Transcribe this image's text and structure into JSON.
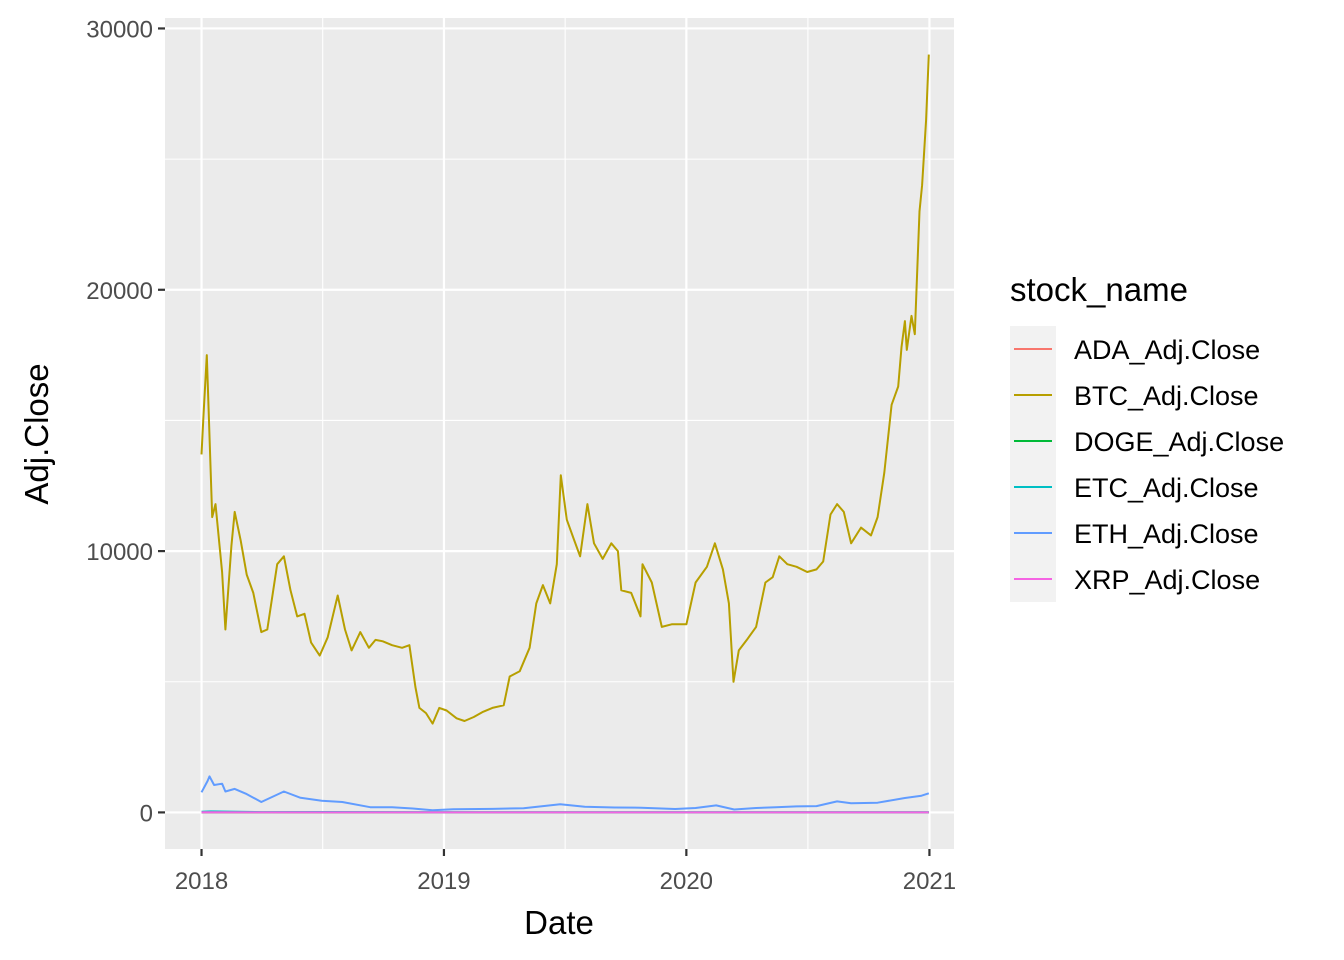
{
  "chart_data": {
    "type": "line",
    "xlabel": "Date",
    "ylabel": "Adj.Close",
    "xlim": [
      "2017-11-07",
      "2021-02-07"
    ],
    "ylim": [
      -1400,
      30400
    ],
    "x_ticks": [
      "2018",
      "2019",
      "2020",
      "2021"
    ],
    "x_tick_dates": [
      "2018-01-01",
      "2019-01-01",
      "2020-01-01",
      "2021-01-01"
    ],
    "y_ticks": [
      "0",
      "10000",
      "20000",
      "30000"
    ],
    "y_tick_values": [
      0,
      10000,
      20000,
      30000
    ],
    "grid": true,
    "legend": {
      "title": "stock_name",
      "position": "right"
    },
    "series": [
      {
        "name": "ADA_Adj.Close",
        "color": "#F8766D",
        "x": [
          "2018-01-01",
          "2018-07-01",
          "2019-01-01",
          "2019-07-01",
          "2020-01-01",
          "2020-07-01",
          "2020-12-31"
        ],
        "values": [
          0.7,
          0.15,
          0.04,
          0.08,
          0.03,
          0.09,
          0.18
        ]
      },
      {
        "name": "BTC_Adj.Close",
        "color": "#B79F00",
        "x": [
          "2018-01-01",
          "2018-01-04",
          "2018-01-09",
          "2018-01-17",
          "2018-01-22",
          "2018-02-01",
          "2018-02-06",
          "2018-02-15",
          "2018-02-20",
          "2018-03-01",
          "2018-03-10",
          "2018-03-20",
          "2018-04-01",
          "2018-04-10",
          "2018-04-25",
          "2018-05-05",
          "2018-05-15",
          "2018-05-25",
          "2018-06-05",
          "2018-06-15",
          "2018-06-28",
          "2018-07-10",
          "2018-07-25",
          "2018-08-05",
          "2018-08-15",
          "2018-08-28",
          "2018-09-10",
          "2018-09-20",
          "2018-10-01",
          "2018-10-15",
          "2018-10-30",
          "2018-11-10",
          "2018-11-19",
          "2018-11-25",
          "2018-12-05",
          "2018-12-15",
          "2018-12-25",
          "2019-01-05",
          "2019-01-20",
          "2019-02-01",
          "2019-02-15",
          "2019-03-01",
          "2019-03-15",
          "2019-04-01",
          "2019-04-10",
          "2019-04-25",
          "2019-05-10",
          "2019-05-20",
          "2019-05-30",
          "2019-06-10",
          "2019-06-20",
          "2019-06-26",
          "2019-07-05",
          "2019-07-15",
          "2019-07-25",
          "2019-08-05",
          "2019-08-15",
          "2019-08-28",
          "2019-09-10",
          "2019-09-20",
          "2019-09-25",
          "2019-10-10",
          "2019-10-24",
          "2019-10-27",
          "2019-11-10",
          "2019-11-25",
          "2019-12-10",
          "2019-12-20",
          "2020-01-01",
          "2020-01-15",
          "2020-02-01",
          "2020-02-13",
          "2020-02-25",
          "2020-03-05",
          "2020-03-12",
          "2020-03-20",
          "2020-04-01",
          "2020-04-15",
          "2020-04-29",
          "2020-05-10",
          "2020-05-20",
          "2020-06-01",
          "2020-06-15",
          "2020-07-01",
          "2020-07-15",
          "2020-07-25",
          "2020-08-05",
          "2020-08-15",
          "2020-08-25",
          "2020-09-05",
          "2020-09-20",
          "2020-10-05",
          "2020-10-15",
          "2020-10-25",
          "2020-11-05",
          "2020-11-15",
          "2020-11-20",
          "2020-11-25",
          "2020-11-28",
          "2020-12-05",
          "2020-12-10",
          "2020-12-17",
          "2020-12-21",
          "2020-12-27",
          "2020-12-31"
        ],
        "values": [
          13700,
          15200,
          17500,
          11300,
          11800,
          9200,
          7000,
          10200,
          11500,
          10400,
          9100,
          8400,
          6900,
          7000,
          9500,
          9800,
          8500,
          7500,
          7600,
          6500,
          6000,
          6700,
          8300,
          7000,
          6200,
          6900,
          6300,
          6600,
          6550,
          6400,
          6300,
          6400,
          4800,
          4000,
          3800,
          3400,
          4000,
          3900,
          3600,
          3500,
          3650,
          3850,
          4000,
          4100,
          5200,
          5400,
          6300,
          8000,
          8700,
          8000,
          9500,
          12900,
          11200,
          10500,
          9800,
          11800,
          10300,
          9700,
          10300,
          10000,
          8500,
          8400,
          7500,
          9500,
          8800,
          7100,
          7200,
          7200,
          7200,
          8800,
          9400,
          10300,
          9300,
          8000,
          5000,
          6200,
          6600,
          7100,
          8800,
          9000,
          9800,
          9500,
          9400,
          9200,
          9300,
          9600,
          11400,
          11800,
          11500,
          10300,
          10900,
          10600,
          11300,
          13000,
          15600,
          16300,
          17800,
          18800,
          17700,
          19000,
          18300,
          23000,
          24000,
          26500,
          29000
        ]
      },
      {
        "name": "DOGE_Adj.Close",
        "color": "#00BA38",
        "x": [
          "2018-01-01",
          "2018-07-01",
          "2019-01-01",
          "2019-07-01",
          "2020-01-01",
          "2020-07-01",
          "2020-12-31"
        ],
        "values": [
          0.009,
          0.003,
          0.002,
          0.003,
          0.002,
          0.003,
          0.005
        ]
      },
      {
        "name": "ETC_Adj.Close",
        "color": "#00BFC4",
        "x": [
          "2018-01-01",
          "2018-01-15",
          "2018-04-01",
          "2018-07-01",
          "2019-01-01",
          "2019-07-01",
          "2020-01-01",
          "2020-07-01",
          "2020-12-31"
        ],
        "values": [
          27,
          38,
          13,
          17,
          5,
          7,
          4.5,
          7,
          5.7
        ]
      },
      {
        "name": "ETH_Adj.Close",
        "color": "#619CFF",
        "x": [
          "2018-01-01",
          "2018-01-10",
          "2018-01-13",
          "2018-01-20",
          "2018-02-01",
          "2018-02-06",
          "2018-02-20",
          "2018-03-10",
          "2018-04-01",
          "2018-05-05",
          "2018-05-30",
          "2018-07-01",
          "2018-08-01",
          "2018-09-12",
          "2018-10-15",
          "2018-11-15",
          "2018-12-15",
          "2019-01-15",
          "2019-03-15",
          "2019-05-01",
          "2019-06-25",
          "2019-08-01",
          "2019-09-15",
          "2019-10-25",
          "2019-12-15",
          "2020-01-15",
          "2020-02-15",
          "2020-03-13",
          "2020-04-15",
          "2020-05-15",
          "2020-06-15",
          "2020-07-15",
          "2020-08-15",
          "2020-09-05",
          "2020-10-15",
          "2020-11-25",
          "2020-12-20",
          "2020-12-31"
        ],
        "values": [
          770,
          1200,
          1380,
          1050,
          1100,
          800,
          900,
          700,
          400,
          800,
          560,
          450,
          400,
          200,
          200,
          150,
          85,
          120,
          135,
          160,
          310,
          220,
          190,
          180,
          130,
          170,
          270,
          110,
          170,
          200,
          230,
          240,
          420,
          350,
          370,
          550,
          640,
          730
        ]
      },
      {
        "name": "XRP_Adj.Close",
        "color": "#F564E3",
        "x": [
          "2018-01-01",
          "2018-01-05",
          "2018-04-01",
          "2018-07-01",
          "2019-01-01",
          "2019-07-01",
          "2020-01-01",
          "2020-07-01",
          "2020-12-31"
        ],
        "values": [
          2.3,
          3.4,
          0.5,
          0.5,
          0.37,
          0.4,
          0.19,
          0.18,
          0.22
        ]
      }
    ]
  }
}
